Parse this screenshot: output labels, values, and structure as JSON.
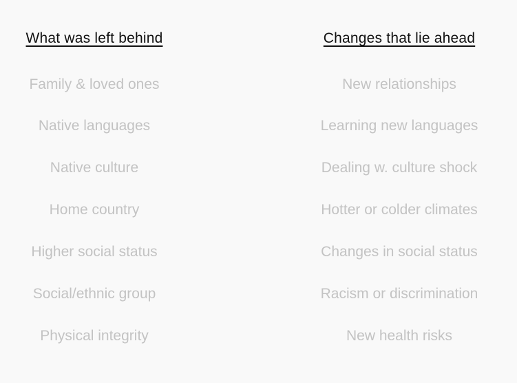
{
  "left_column": {
    "heading": "What was left behind",
    "items": [
      "Family & loved ones",
      "Native languages",
      "Native culture",
      "Home country",
      "Higher social status",
      "Social/ethnic group",
      "Physical integrity"
    ]
  },
  "right_column": {
    "heading": "Changes that lie ahead",
    "items": [
      "New relationships",
      "Learning new languages",
      "Dealing w. culture shock",
      "Hotter or colder climates",
      "Changes in social status",
      "Racism or discrimination",
      "New health risks"
    ]
  },
  "colors": {
    "background": "#f9f9f9",
    "heading_text": "#111111",
    "item_text": "#c3c3c3"
  }
}
